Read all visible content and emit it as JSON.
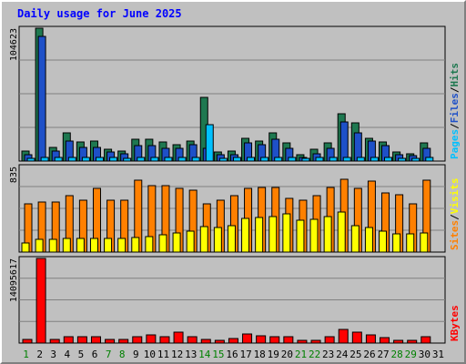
{
  "title": "Daily usage for June 2025",
  "chart_data": [
    {
      "type": "bar",
      "panel": "top",
      "categories": [
        "1",
        "2",
        "3",
        "4",
        "5",
        "6",
        "7",
        "8",
        "9",
        "10",
        "11",
        "12",
        "13",
        "14",
        "15",
        "16",
        "17",
        "18",
        "19",
        "20",
        "21",
        "22",
        "23",
        "24",
        "25",
        "26",
        "27",
        "28",
        "29",
        "30",
        "31"
      ],
      "ymax_label": "104623",
      "ylim": [
        0,
        104623
      ],
      "legend": [
        {
          "label": "Pages",
          "color": "#00c0ff"
        },
        {
          "sep": "/"
        },
        {
          "label": "Files",
          "color": "#1e50c8"
        },
        {
          "sep": "/"
        },
        {
          "label": "Hits",
          "color": "#1e7850"
        }
      ],
      "series": [
        {
          "name": "Hits",
          "color": "#1e7850",
          "values": [
            8000,
            104623,
            11000,
            22000,
            15000,
            16000,
            9000,
            8000,
            17000,
            17000,
            15000,
            13000,
            16000,
            50000,
            7000,
            8000,
            18000,
            16000,
            22000,
            14000,
            5000,
            9000,
            14000,
            37000,
            30000,
            18000,
            15000,
            7000,
            6000,
            14000,
            null
          ]
        },
        {
          "name": "Files",
          "color": "#1e50c8",
          "values": [
            5000,
            98000,
            8000,
            16000,
            11000,
            11000,
            7000,
            6000,
            12000,
            12000,
            10000,
            10000,
            13000,
            10000,
            5000,
            5000,
            14000,
            13000,
            17000,
            10000,
            3000,
            6000,
            10000,
            31000,
            22000,
            16000,
            12000,
            5000,
            4000,
            10000,
            null
          ]
        },
        {
          "name": "Pages",
          "color": "#00c0ff",
          "values": [
            2000,
            3000,
            3000,
            3000,
            3000,
            3000,
            3000,
            2000,
            3000,
            3000,
            3000,
            3000,
            3000,
            29000,
            2000,
            3000,
            3000,
            3000,
            3000,
            3000,
            2000,
            3000,
            3000,
            3000,
            3000,
            3000,
            3000,
            2000,
            2000,
            3000,
            null
          ]
        }
      ]
    },
    {
      "type": "bar",
      "panel": "middle",
      "categories": [
        "1",
        "2",
        "3",
        "4",
        "5",
        "6",
        "7",
        "8",
        "9",
        "10",
        "11",
        "12",
        "13",
        "14",
        "15",
        "16",
        "17",
        "18",
        "19",
        "20",
        "21",
        "22",
        "23",
        "24",
        "25",
        "26",
        "27",
        "28",
        "29",
        "30",
        "31"
      ],
      "ymax_label": "835",
      "ylim": [
        0,
        835
      ],
      "legend": [
        {
          "label": "Sites",
          "color": "#ff8000"
        },
        {
          "sep": "/"
        },
        {
          "label": "Visits",
          "color": "#ffff00"
        }
      ],
      "series": [
        {
          "name": "Sites",
          "color": "#ff8000",
          "values": [
            470,
            490,
            490,
            550,
            510,
            620,
            510,
            510,
            700,
            650,
            650,
            620,
            600,
            470,
            510,
            550,
            620,
            630,
            630,
            520,
            510,
            550,
            630,
            710,
            620,
            690,
            580,
            560,
            470,
            700,
            null
          ]
        },
        {
          "name": "Visits",
          "color": "#ffff00",
          "values": [
            90,
            120,
            120,
            130,
            130,
            130,
            130,
            130,
            140,
            150,
            170,
            190,
            200,
            250,
            240,
            260,
            330,
            340,
            350,
            370,
            310,
            320,
            350,
            390,
            260,
            240,
            200,
            180,
            180,
            190,
            null
          ]
        }
      ]
    },
    {
      "type": "bar",
      "panel": "bottom",
      "categories": [
        "1",
        "2",
        "3",
        "4",
        "5",
        "6",
        "7",
        "8",
        "9",
        "10",
        "11",
        "12",
        "13",
        "14",
        "15",
        "16",
        "17",
        "18",
        "19",
        "20",
        "21",
        "22",
        "23",
        "24",
        "25",
        "26",
        "27",
        "28",
        "29",
        "30",
        "31"
      ],
      "ymax_label": "14095617",
      "ylim": [
        0,
        14095617
      ],
      "legend": [
        {
          "label": "KBytes",
          "color": "#ff0000"
        }
      ],
      "series": [
        {
          "name": "KBytes",
          "color": "#ff0000",
          "values": [
            600000,
            14095617,
            600000,
            1000000,
            1000000,
            1000000,
            600000,
            600000,
            1000000,
            1300000,
            1000000,
            1800000,
            1000000,
            600000,
            500000,
            700000,
            1500000,
            1200000,
            1100000,
            1000000,
            400000,
            400000,
            1000000,
            2300000,
            1800000,
            1300000,
            900000,
            500000,
            500000,
            1000000,
            null
          ]
        }
      ]
    }
  ],
  "x_axis": {
    "labels": [
      "1",
      "2",
      "3",
      "4",
      "5",
      "6",
      "7",
      "8",
      "9",
      "10",
      "11",
      "12",
      "13",
      "14",
      "15",
      "16",
      "17",
      "18",
      "19",
      "20",
      "21",
      "22",
      "23",
      "24",
      "25",
      "26",
      "27",
      "28",
      "29",
      "30",
      "31"
    ],
    "weekend_days": [
      "1",
      "7",
      "8",
      "14",
      "15",
      "21",
      "22",
      "28",
      "29"
    ],
    "weekday_color": "#000000",
    "weekend_color": "#008000"
  }
}
